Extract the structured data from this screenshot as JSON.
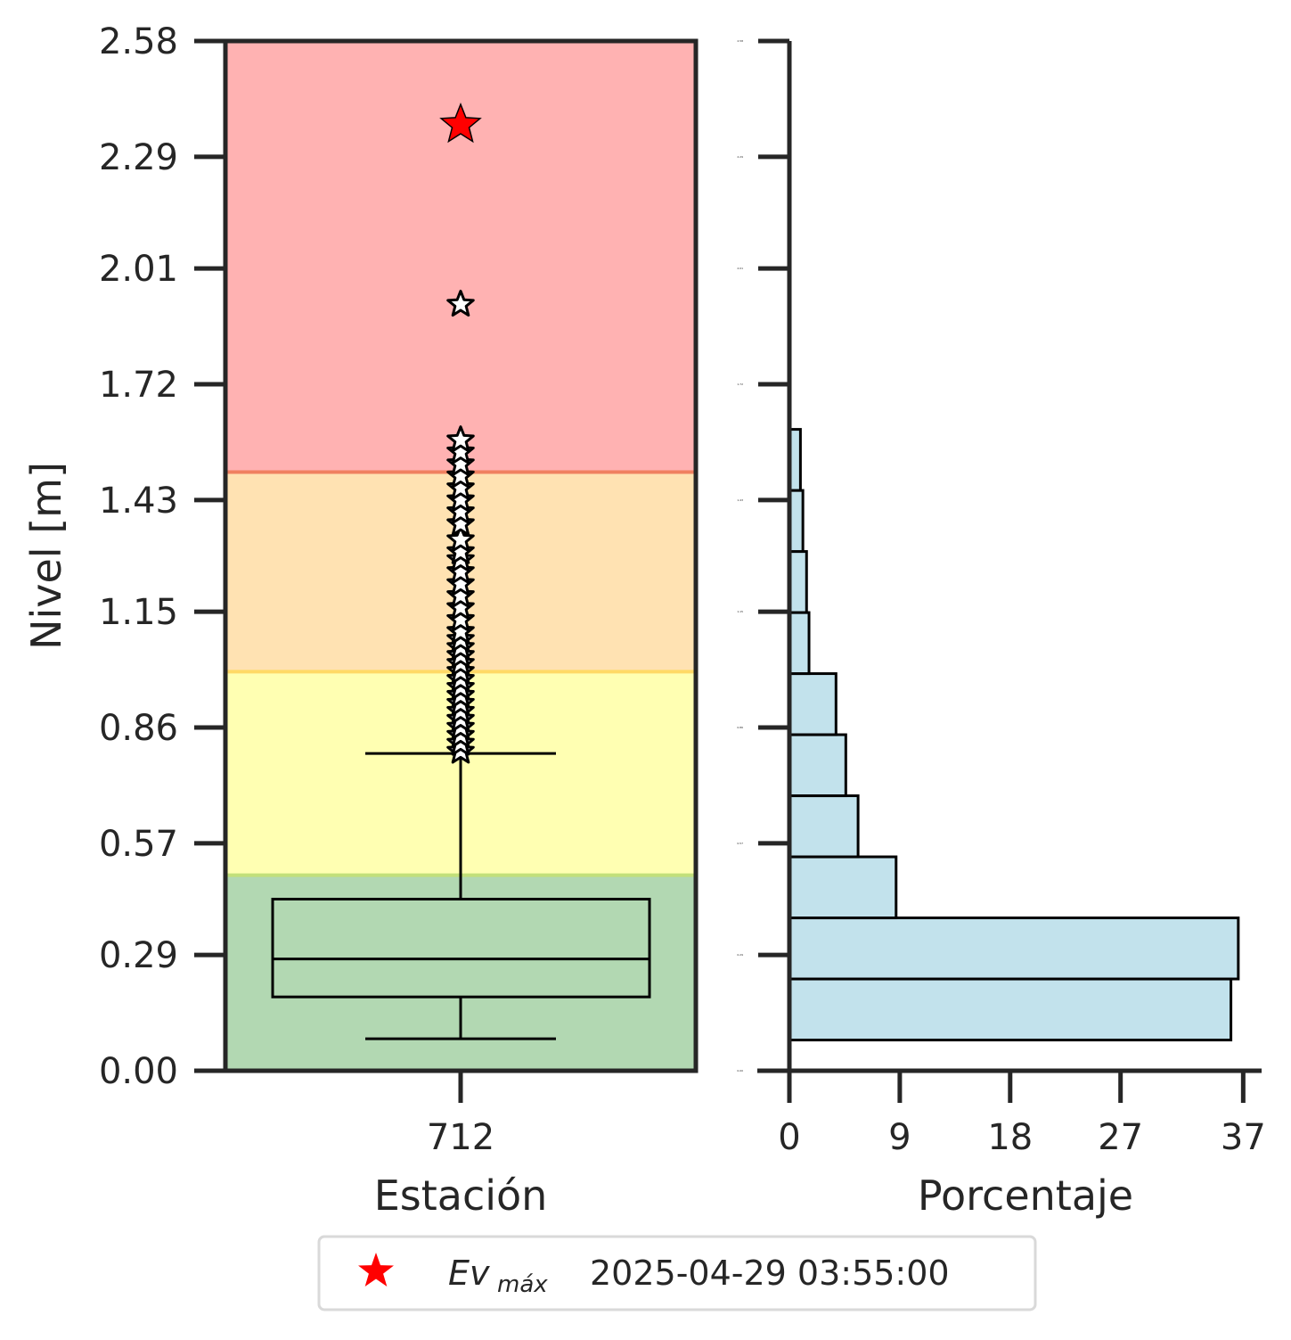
{
  "chart_data": [
    {
      "type": "box",
      "xlabel": "Estación",
      "ylabel": "Nivel [m]",
      "ylim": [
        0,
        2.58
      ],
      "yticks": [
        "0.00",
        "0.29",
        "0.57",
        "0.86",
        "1.15",
        "1.43",
        "1.72",
        "2.01",
        "2.29",
        "2.58"
      ],
      "categories": [
        "712"
      ],
      "threshold_bands": [
        {
          "from": 0.0,
          "to": 0.49,
          "color": "#b2d8b2"
        },
        {
          "from": 0.49,
          "to": 1.0,
          "color": "#ffffb2"
        },
        {
          "from": 1.0,
          "to": 1.5,
          "color": "#ffe2b2"
        },
        {
          "from": 1.5,
          "to": 2.58,
          "color": "#ffb2b2"
        }
      ],
      "threshold_lines": [
        {
          "value": 0.49,
          "color": "#c2e07a"
        },
        {
          "value": 1.0,
          "color": "#ffd966"
        },
        {
          "value": 1.5,
          "color": "#f08060"
        }
      ],
      "box": {
        "whisker_low": 0.08,
        "q1": 0.185,
        "median": 0.28,
        "q3": 0.43,
        "whisker_high": 0.795
      },
      "outliers": [
        0.8,
        0.82,
        0.84,
        0.86,
        0.88,
        0.9,
        0.92,
        0.94,
        0.96,
        0.98,
        1.0,
        1.02,
        1.04,
        1.06,
        1.08,
        1.1,
        1.13,
        1.16,
        1.19,
        1.22,
        1.25,
        1.28,
        1.3,
        1.33,
        1.37,
        1.4,
        1.43,
        1.46,
        1.49,
        1.52,
        1.55,
        1.58,
        1.92
      ],
      "max_event": {
        "value": 2.37,
        "color": "#ff0000"
      }
    },
    {
      "type": "histogram",
      "orientation": "horizontal",
      "xlabel": "Porcentaje",
      "xlim": [
        0,
        38.5
      ],
      "xticks": [
        "0",
        "9",
        "18",
        "27",
        "37"
      ],
      "ylim": [
        0,
        2.58
      ],
      "bins": [
        {
          "from": 0.077,
          "to": 0.23,
          "value": 36.0
        },
        {
          "from": 0.23,
          "to": 0.383,
          "value": 36.6
        },
        {
          "from": 0.383,
          "to": 0.536,
          "value": 8.7
        },
        {
          "from": 0.536,
          "to": 0.689,
          "value": 5.6
        },
        {
          "from": 0.689,
          "to": 0.842,
          "value": 4.6
        },
        {
          "from": 0.842,
          "to": 0.995,
          "value": 3.8
        },
        {
          "from": 0.995,
          "to": 1.148,
          "value": 1.6
        },
        {
          "from": 1.148,
          "to": 1.301,
          "value": 1.4
        },
        {
          "from": 1.301,
          "to": 1.454,
          "value": 1.1
        },
        {
          "from": 1.454,
          "to": 1.607,
          "value": 0.9
        }
      ],
      "bar_color": "#add8e6"
    }
  ],
  "legend": {
    "symbol_name": "star-icon",
    "symbol_color": "#ff0000",
    "label_base": "Ev",
    "label_sub": "máx",
    "label_date": "2025-04-29 03:55:00"
  }
}
